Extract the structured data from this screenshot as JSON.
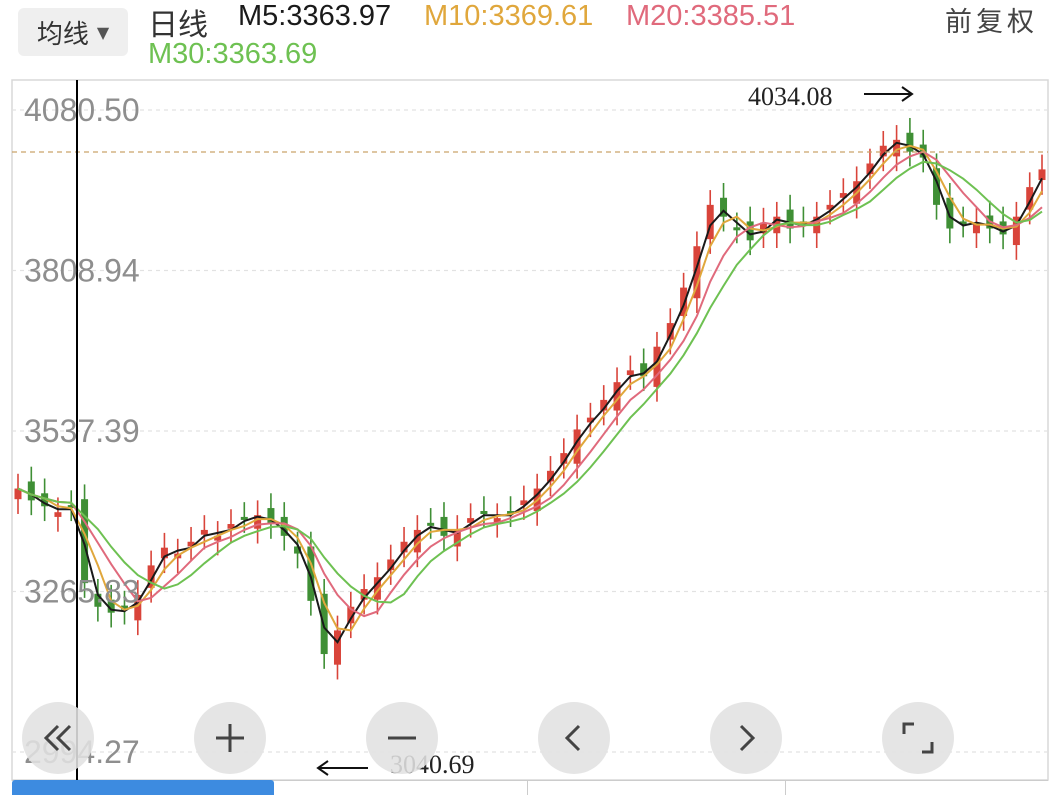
{
  "header": {
    "ma_select_label": "均线",
    "period": "日线",
    "ma5": "M5:3363.97",
    "ma10": "M10:3369.61",
    "ma20": "M20:3385.51",
    "ma30": "M30:3363.69",
    "adjust": "前复权"
  },
  "chart_data": {
    "type": "candlestick",
    "y_ticks": [
      "4080.50",
      "3808.94",
      "3537.39",
      "3265.83",
      "2994.27"
    ],
    "ylim": [
      2994.27,
      4080.5
    ],
    "high_label": "4034.08",
    "low_label": "3040.69",
    "reference_line": 4034.08,
    "series": [
      {
        "name": "M5",
        "color": "#1a1a1a"
      },
      {
        "name": "M10",
        "color": "#e0a73c"
      },
      {
        "name": "M20",
        "color": "#e06a7c"
      },
      {
        "name": "M30",
        "color": "#6ec152"
      }
    ],
    "x": [
      0,
      0.013,
      0.026,
      0.039,
      0.052,
      0.065,
      0.078,
      0.091,
      0.104,
      0.117,
      0.13,
      0.143,
      0.156,
      0.169,
      0.182,
      0.195,
      0.208,
      0.221,
      0.234,
      0.247,
      0.26,
      0.273,
      0.286,
      0.299,
      0.312,
      0.325,
      0.338,
      0.351,
      0.364,
      0.377,
      0.39,
      0.403,
      0.416,
      0.429,
      0.442,
      0.455,
      0.468,
      0.481,
      0.494,
      0.507,
      0.52,
      0.533,
      0.546,
      0.559,
      0.572,
      0.585,
      0.598,
      0.611,
      0.624,
      0.637,
      0.65,
      0.663,
      0.676,
      0.689,
      0.702,
      0.715,
      0.728,
      0.741,
      0.754,
      0.767,
      0.78,
      0.793,
      0.806,
      0.819,
      0.832,
      0.845,
      0.858,
      0.871,
      0.884,
      0.897,
      0.91,
      0.923,
      0.936,
      0.949,
      0.962,
      0.975,
      0.988,
      1.0
    ],
    "close": [
      3440,
      3420,
      3410,
      3400,
      3410,
      3280,
      3240,
      3230,
      3235,
      3260,
      3310,
      3340,
      3330,
      3350,
      3370,
      3360,
      3380,
      3390,
      3395,
      3380,
      3360,
      3330,
      3250,
      3160,
      3200,
      3240,
      3270,
      3290,
      3320,
      3350,
      3370,
      3380,
      3360,
      3370,
      3390,
      3400,
      3390,
      3400,
      3420,
      3440,
      3470,
      3500,
      3540,
      3560,
      3590,
      3620,
      3640,
      3630,
      3680,
      3720,
      3780,
      3850,
      3920,
      3900,
      3880,
      3860,
      3890,
      3900,
      3880,
      3890,
      3900,
      3920,
      3940,
      3960,
      3990,
      4020,
      4030,
      4010,
      4000,
      3920,
      3880,
      3890,
      3890,
      3880,
      3870,
      3900,
      3950,
      3980
    ]
  },
  "controls": {
    "rewind": "rewind-icon",
    "zoom_in": "plus-icon",
    "zoom_out": "minus-icon",
    "prev": "chevron-left-icon",
    "next": "chevron-right-icon",
    "fullscreen": "fullscreen-icon"
  }
}
